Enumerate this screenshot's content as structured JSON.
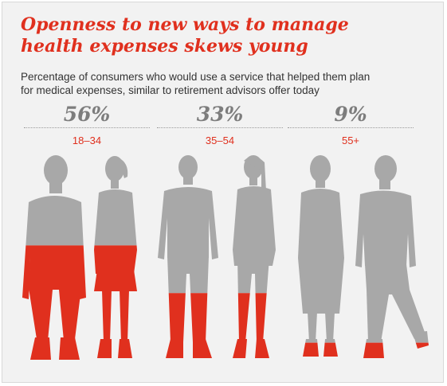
{
  "title": {
    "line1": "Openness to new ways to manage",
    "line2": "health expenses skews young"
  },
  "subtitle": {
    "line1": "Percentage of consumers who would use a service that helped them plan",
    "line2": "for medical expenses, similar to retirement advisors offer today"
  },
  "colors": {
    "accent": "#e0301e",
    "silhouette": "#a8a8a8",
    "percent_text": "#7d7d7d"
  },
  "chart_data": {
    "type": "bar",
    "categories": [
      "18–34",
      "35–54",
      "55+"
    ],
    "values": [
      56,
      33,
      9
    ],
    "value_labels": [
      "56%",
      "33%",
      "9%"
    ],
    "ylim": [
      0,
      100
    ],
    "unit": "%"
  }
}
